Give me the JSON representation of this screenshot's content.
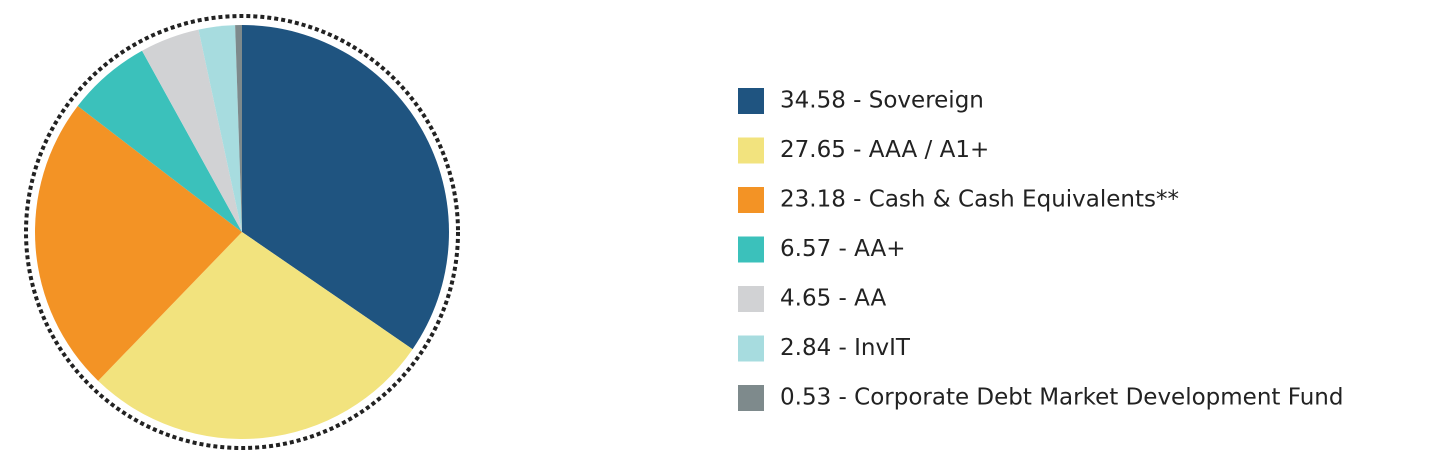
{
  "chart_data": {
    "type": "pie",
    "categories": [
      "34.58 - Sovereign",
      "27.65 - AAA / A1+",
      "23.18 - Cash & Cash Equivalents**",
      "6.57 - AA+",
      "4.65 - AA",
      "2.84 - InvIT",
      "0.53 - Corporate Debt Market Development Fund"
    ],
    "values": [
      34.58,
      27.65,
      23.18,
      6.57,
      4.65,
      2.84,
      0.53
    ],
    "colors": [
      "#1f5480",
      "#f2e37e",
      "#f39325",
      "#3bc1bb",
      "#d1d2d4",
      "#a7dcdf",
      "#7e8a8c"
    ],
    "legend": "right"
  }
}
